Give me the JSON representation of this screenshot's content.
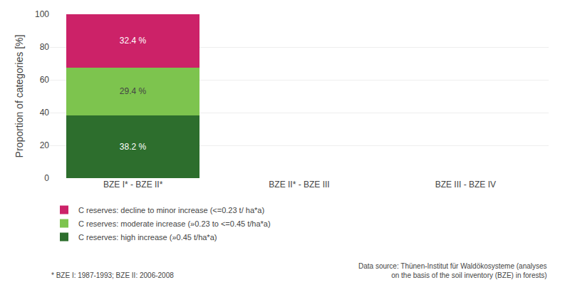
{
  "chart_data": {
    "type": "bar",
    "stacked": true,
    "categories": [
      "BZE I* - BZE II*",
      "BZE II* - BZE III",
      "BZE III - BZE IV"
    ],
    "series": [
      {
        "name": "C reserves: high increase (»0.45 t/ha*a)",
        "color": "#2d6e2d",
        "values": [
          38.2,
          0,
          0
        ],
        "value_labels": [
          "38.2 %",
          null,
          null
        ]
      },
      {
        "name": "C reserves: moderate increase (»0.23 to <=0.45 t/ha*a)",
        "color": "#7dc44e",
        "values": [
          29.4,
          0,
          0
        ],
        "value_labels": [
          "29.4 %",
          null,
          null
        ]
      },
      {
        "name": "C reserves: decline to minor increase (<=0.23 t/ ha*a)",
        "color": "#cc2268",
        "values": [
          32.4,
          0,
          0
        ],
        "value_labels": [
          "32.4 %",
          null,
          null
        ]
      }
    ],
    "ylabel": "Proportion of categories [%]",
    "ylim": [
      0,
      100
    ],
    "yticks": [
      0,
      20,
      40,
      60,
      80,
      100
    ],
    "grid": true,
    "data_labels": true,
    "legend": "lower left",
    "annotations": [
      "* BZE I: 1987-1993; BZE II: 2006-2008",
      "Data source: Thünen-Institut für Waldökosysteme (analyses\non the basis of the soil inventory (BZE) in forests)"
    ]
  }
}
